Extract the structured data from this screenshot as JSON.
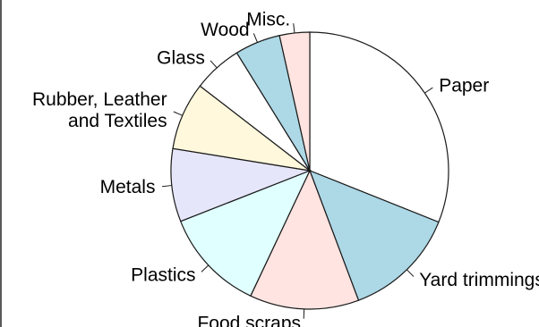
{
  "chart_data": {
    "type": "pie",
    "title": "",
    "direction": "clockwise",
    "start": "top",
    "slices": [
      {
        "label": "Paper",
        "value": 31.0,
        "color": "#ffffff"
      },
      {
        "label": "Yard trimmings",
        "value": 13.2,
        "color": "#add8e6"
      },
      {
        "label": "Food scraps",
        "value": 12.7,
        "color": "#ffe4e1"
      },
      {
        "label": "Plastics",
        "value": 12.0,
        "color": "#e0ffff"
      },
      {
        "label": "Metals",
        "value": 8.5,
        "color": "#e6e6fa"
      },
      {
        "label": "Rubber, Leather\nand Textiles",
        "value": 7.9,
        "color": "#fff8dc"
      },
      {
        "label": "Glass",
        "value": 5.7,
        "color": "#ffffff"
      },
      {
        "label": "Wood",
        "value": 5.3,
        "color": "#add8e6"
      },
      {
        "label": "Misc.",
        "value": 3.5,
        "color": "#ffe4e1"
      }
    ]
  }
}
